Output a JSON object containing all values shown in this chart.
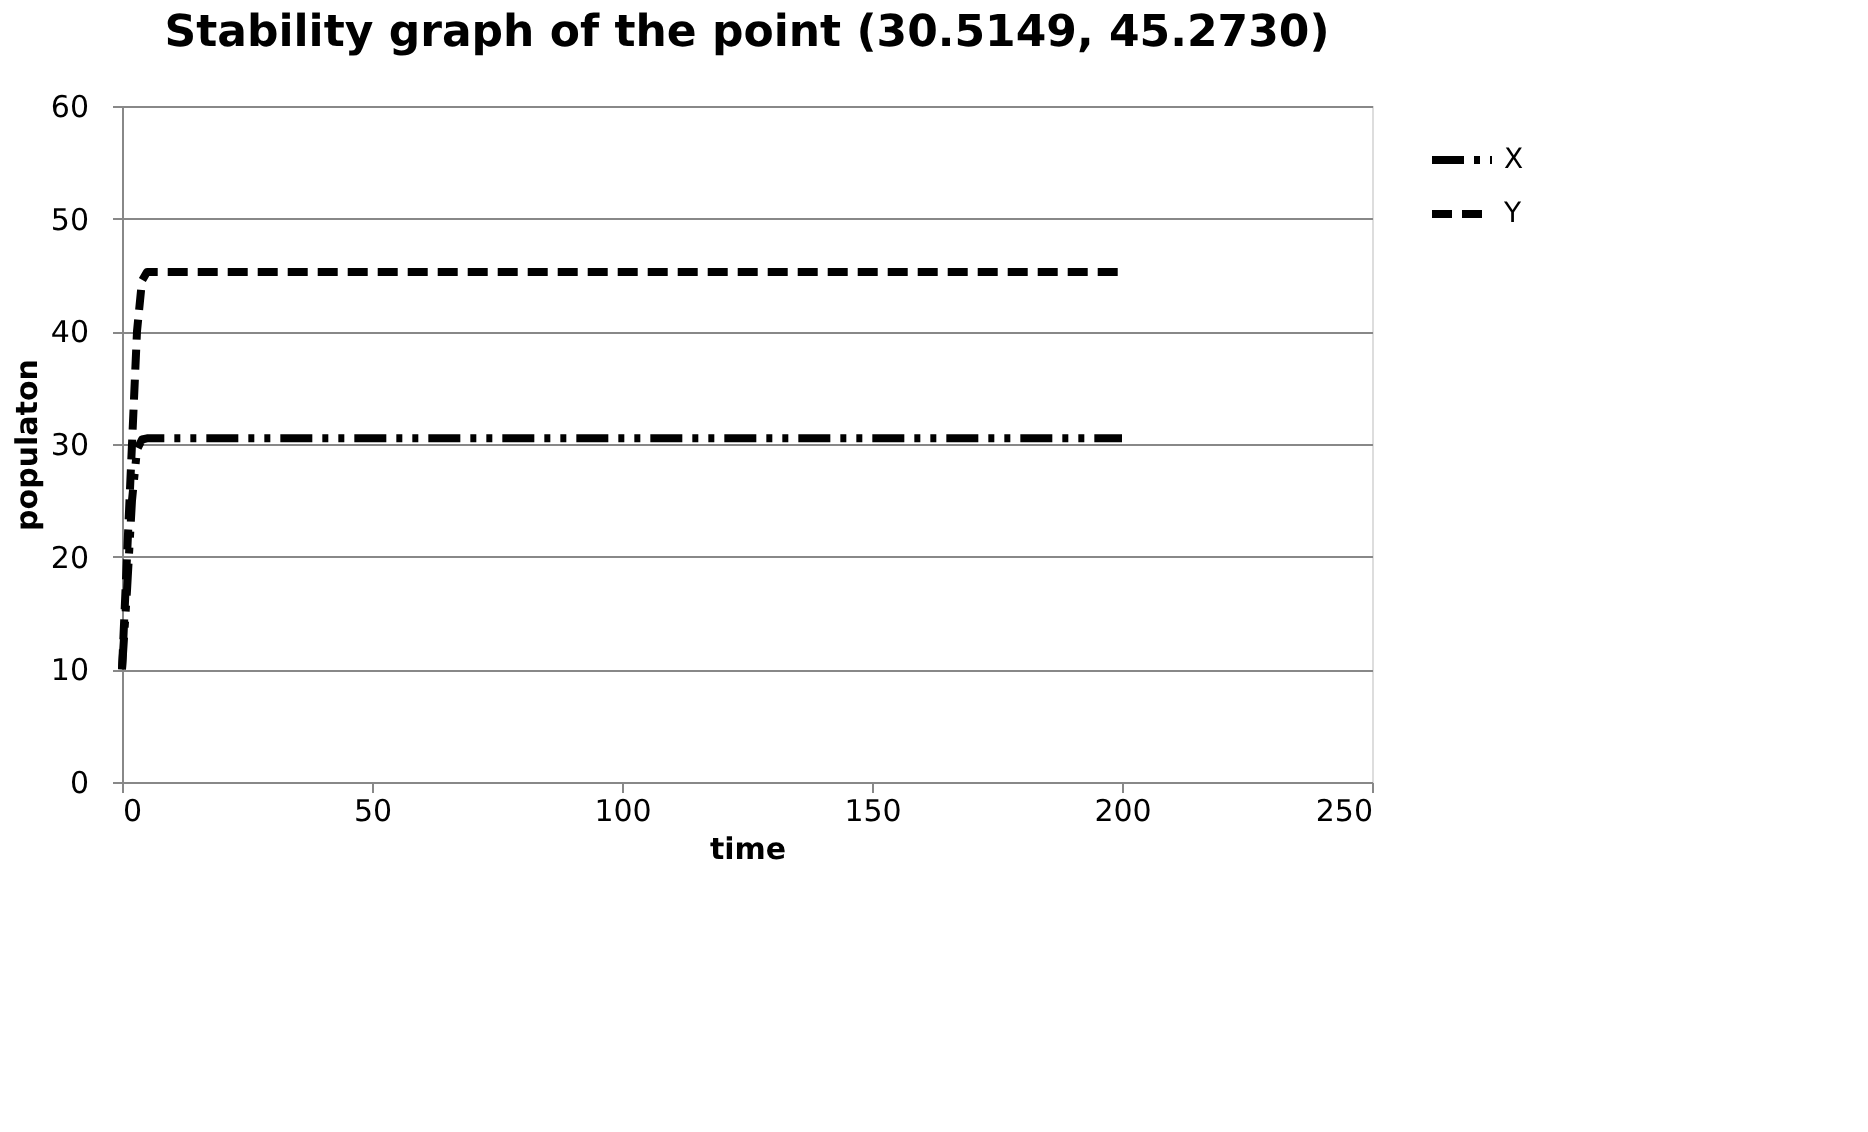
{
  "chart_data": {
    "type": "line",
    "title": "Stability graph of the point (30.5149, 45.2730)",
    "xlabel": "time",
    "ylabel": "populaton",
    "xlim": [
      0,
      250
    ],
    "xticks": [
      0,
      50,
      100,
      150,
      200,
      250
    ],
    "ylim": [
      0,
      60
    ],
    "yticks": [
      0,
      10,
      20,
      30,
      40,
      50,
      60
    ],
    "grid": "y",
    "legend": "right",
    "marker": "none",
    "series": [
      {
        "name": "X",
        "color": "#000000",
        "line_style": "dotted",
        "x": [
          0,
          1,
          2,
          3,
          4,
          5,
          200
        ],
        "values": [
          10,
          17,
          25,
          29.5,
          30.4,
          30.5,
          30.5
        ]
      },
      {
        "name": "Y",
        "color": "#000000",
        "line_style": "dashed",
        "x": [
          0,
          1,
          2,
          3,
          4,
          5,
          200
        ],
        "values": [
          10,
          20,
          30,
          40,
          44.5,
          45.27,
          45.27
        ]
      }
    ]
  }
}
